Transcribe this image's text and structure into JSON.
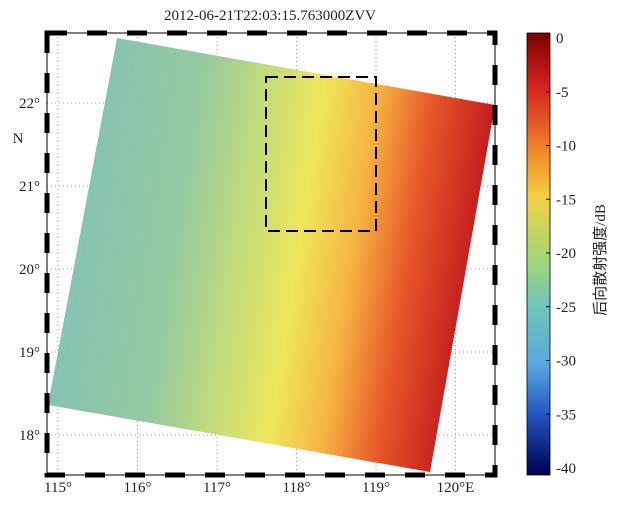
{
  "title": "2012-06-21T22:03:15.763000ZVV",
  "lon_labels": [
    "115°",
    "116°",
    "117°",
    "118°",
    "119°",
    "120°E"
  ],
  "lat_labels": [
    "22°",
    "21°",
    "20°",
    "19°",
    "18°"
  ],
  "lat_axis_label": "N",
  "colorbar": {
    "label": "后向散射强度/dB",
    "range": [
      -40,
      0
    ],
    "ticks": [
      0,
      -5,
      -10,
      -15,
      -20,
      -25,
      -30,
      -35,
      -40
    ]
  }
}
